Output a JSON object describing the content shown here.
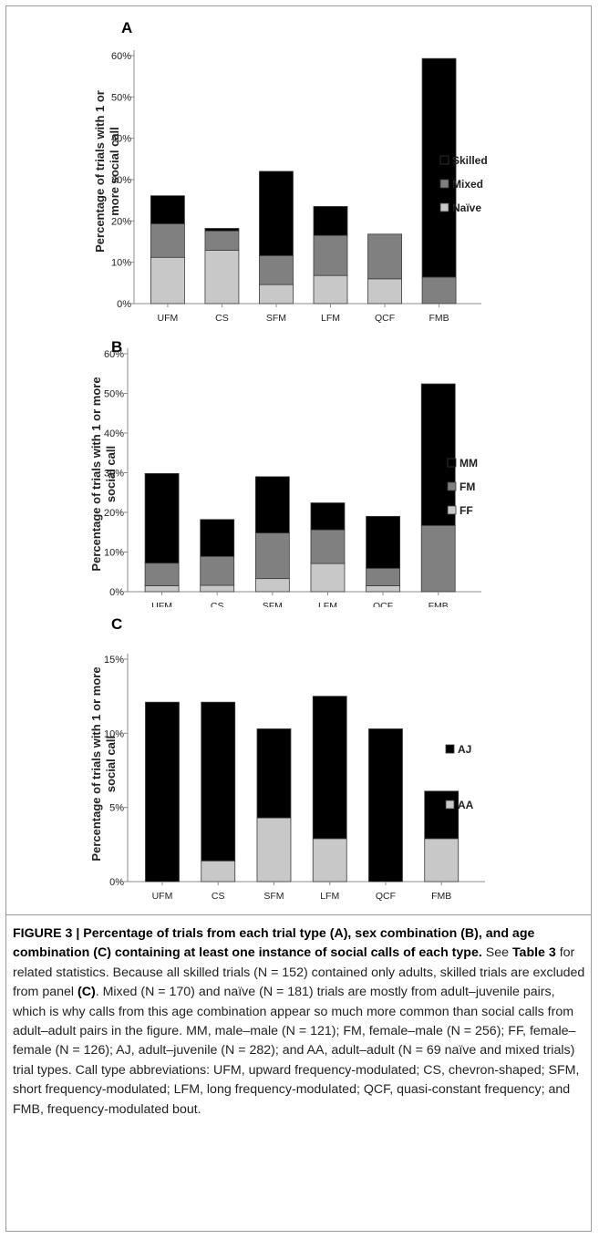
{
  "figure": {
    "panels": [
      {
        "id": "A",
        "panel_label": "A",
        "ylabel_lines": [
          "Percentage of trials with 1 or",
          "more social call"
        ],
        "categories": [
          "UFM",
          "CS",
          "SFM",
          "LFM",
          "QCF",
          "FMB"
        ],
        "yticks": [
          "0%",
          "10%",
          "20%",
          "30%",
          "40%",
          "50%",
          "60%"
        ],
        "legend": [
          "Skilled",
          "Mixed",
          "Naïve"
        ]
      },
      {
        "id": "B",
        "panel_label": "B",
        "ylabel_lines": [
          "Percentage of trials with 1 or more",
          "social call"
        ],
        "categories": [
          "UFM",
          "CS",
          "SFM",
          "LFM",
          "QCF",
          "FMB"
        ],
        "yticks": [
          "0%",
          "10%",
          "20%",
          "30%",
          "40%",
          "50%",
          "60%"
        ],
        "legend": [
          "MM",
          "FM",
          "FF"
        ]
      },
      {
        "id": "C",
        "panel_label": "C",
        "ylabel_lines": [
          "Percentage of trials with 1 or more",
          "social call"
        ],
        "categories": [
          "UFM",
          "CS",
          "SFM",
          "LFM",
          "QCF",
          "FMB"
        ],
        "yticks": [
          "0%",
          "5%",
          "10%",
          "15%"
        ],
        "legend": [
          "AJ",
          "AA"
        ]
      }
    ]
  },
  "chart_data": [
    {
      "type": "bar",
      "stacked": true,
      "categories": [
        "UFM",
        "CS",
        "SFM",
        "LFM",
        "QCF",
        "FMB"
      ],
      "series": [
        {
          "name": "Naïve",
          "values": [
            11.2,
            12.9,
            4.6,
            6.8,
            6.0,
            0
          ],
          "color": "#c8c8c8"
        },
        {
          "name": "Mixed",
          "values": [
            8.1,
            4.7,
            7.0,
            9.7,
            10.8,
            6.4
          ],
          "color": "#808080"
        },
        {
          "name": "Skilled",
          "values": [
            6.8,
            0.6,
            20.4,
            7.0,
            0,
            52.9
          ],
          "color": "#000000"
        }
      ],
      "ylim": [
        0,
        60
      ],
      "legend_position": "right",
      "grid": false
    },
    {
      "type": "bar",
      "stacked": true,
      "categories": [
        "UFM",
        "CS",
        "SFM",
        "LFM",
        "QCF",
        "FMB"
      ],
      "series": [
        {
          "name": "FF",
          "values": [
            1.5,
            1.6,
            3.3,
            7.1,
            1.5,
            0
          ],
          "color": "#c8c8c8"
        },
        {
          "name": "FM",
          "values": [
            5.7,
            7.3,
            11.5,
            8.5,
            4.4,
            16.7
          ],
          "color": "#808080"
        },
        {
          "name": "MM",
          "values": [
            22.6,
            9.3,
            14.2,
            6.8,
            13.1,
            35.7
          ],
          "color": "#000000"
        }
      ],
      "ylim": [
        0,
        60
      ],
      "legend_position": "right",
      "grid": false
    },
    {
      "type": "bar",
      "stacked": true,
      "categories": [
        "UFM",
        "CS",
        "SFM",
        "LFM",
        "QCF",
        "FMB"
      ],
      "series": [
        {
          "name": "AA",
          "values": [
            0,
            1.4,
            4.3,
            2.9,
            0,
            2.9
          ],
          "color": "#c8c8c8"
        },
        {
          "name": "AJ",
          "values": [
            12.1,
            10.7,
            6.0,
            9.6,
            10.3,
            3.2
          ],
          "color": "#000000"
        }
      ],
      "ylim": [
        0,
        15
      ],
      "legend_position": "right",
      "grid": false
    }
  ],
  "caption": {
    "title": "FIGURE 3 | Percentage of trials from each trial type (A), sex combination (B), and age combination (C) containing at least one instance of social calls of each type.",
    "t1": " See ",
    "table_ref": "Table 3",
    "t2": " for related statistics. Because all skilled trials (N = 152) contained only adults, skilled trials are excluded from panel ",
    "panel_ref": "(C)",
    "t3": ". Mixed (N = 170) and naïve (N = 181) trials are mostly from adult–juvenile pairs, which is why calls from this age combination appear so much more common than social calls from adult–adult pairs in the figure. MM, male–male (N = 121); FM, female–male (N = 256); FF, female–female (N = 126); AJ, adult–juvenile (N = 282); and AA, adult–adult (N = 69 naïve and mixed trials) trial types. Call type abbreviations: UFM, upward frequency-modulated; CS, chevron-shaped; SFM, short frequency-modulated; LFM, long frequency-modulated; QCF, quasi-constant frequency; and FMB, frequency-modulated bout."
  }
}
